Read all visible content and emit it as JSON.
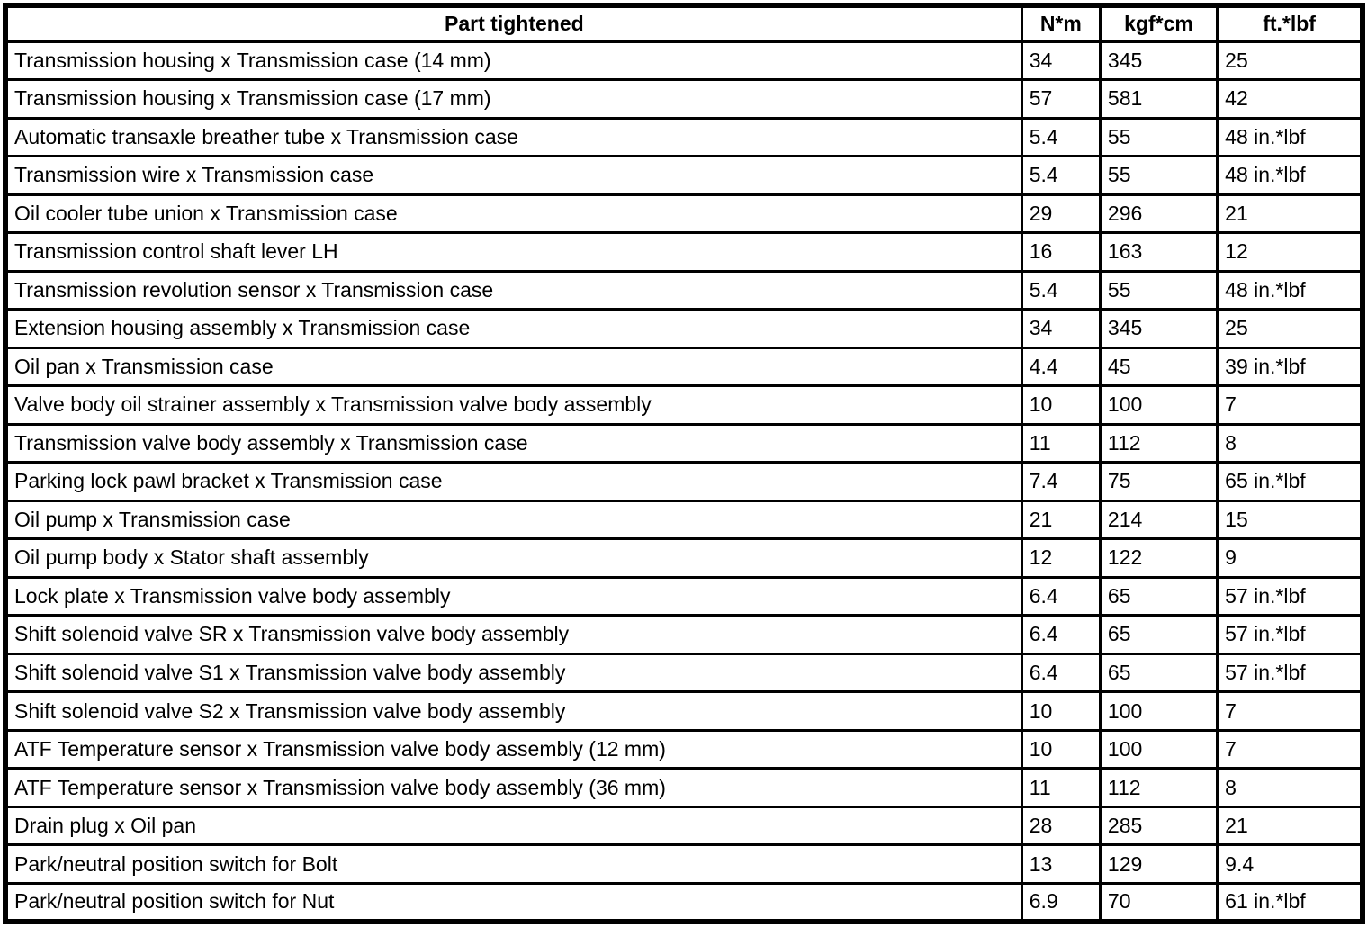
{
  "table": {
    "columns": {
      "part": "Part tightened",
      "nm": "N*m",
      "kgfcm": "kgf*cm",
      "ftlbf": "ft.*lbf"
    },
    "rows": [
      {
        "part": "Transmission housing x Transmission case (14 mm)",
        "nm": "34",
        "kgfcm": "345",
        "ftlbf": "25"
      },
      {
        "part": "Transmission housing x Transmission case (17 mm)",
        "nm": "57",
        "kgfcm": "581",
        "ftlbf": "42"
      },
      {
        "part": "Automatic transaxle breather tube x Transmission case",
        "nm": "5.4",
        "kgfcm": "55",
        "ftlbf": "48 in.*lbf"
      },
      {
        "part": "Transmission wire x Transmission case",
        "nm": "5.4",
        "kgfcm": "55",
        "ftlbf": "48 in.*lbf"
      },
      {
        "part": "Oil cooler tube union x Transmission case",
        "nm": "29",
        "kgfcm": "296",
        "ftlbf": "21"
      },
      {
        "part": "Transmission control shaft lever LH",
        "nm": "16",
        "kgfcm": "163",
        "ftlbf": "12"
      },
      {
        "part": "Transmission revolution sensor x Transmission case",
        "nm": "5.4",
        "kgfcm": "55",
        "ftlbf": "48 in.*lbf"
      },
      {
        "part": "Extension housing assembly x Transmission case",
        "nm": "34",
        "kgfcm": "345",
        "ftlbf": "25"
      },
      {
        "part": "Oil pan x Transmission case",
        "nm": "4.4",
        "kgfcm": "45",
        "ftlbf": "39 in.*lbf"
      },
      {
        "part": "Valve body oil strainer assembly x Transmission valve body assembly",
        "nm": "10",
        "kgfcm": "100",
        "ftlbf": "7"
      },
      {
        "part": "Transmission valve body assembly x Transmission case",
        "nm": "11",
        "kgfcm": "112",
        "ftlbf": "8"
      },
      {
        "part": "Parking lock pawl bracket x Transmission case",
        "nm": "7.4",
        "kgfcm": "75",
        "ftlbf": "65 in.*lbf"
      },
      {
        "part": "Oil pump x Transmission case",
        "nm": "21",
        "kgfcm": "214",
        "ftlbf": "15"
      },
      {
        "part": "Oil pump body x Stator shaft assembly",
        "nm": "12",
        "kgfcm": "122",
        "ftlbf": "9"
      },
      {
        "part": "Lock plate x Transmission valve body assembly",
        "nm": "6.4",
        "kgfcm": "65",
        "ftlbf": "57 in.*lbf"
      },
      {
        "part": "Shift solenoid valve SR x Transmission valve body assembly",
        "nm": "6.4",
        "kgfcm": "65",
        "ftlbf": "57 in.*lbf"
      },
      {
        "part": "Shift solenoid valve S1 x Transmission valve body assembly",
        "nm": "6.4",
        "kgfcm": "65",
        "ftlbf": "57 in.*lbf"
      },
      {
        "part": "Shift solenoid valve S2 x Transmission valve body assembly",
        "nm": "10",
        "kgfcm": "100",
        "ftlbf": "7"
      },
      {
        "part": "ATF Temperature sensor x Transmission valve body assembly (12 mm)",
        "nm": "10",
        "kgfcm": "100",
        "ftlbf": "7"
      },
      {
        "part": "ATF Temperature sensor x Transmission valve body assembly (36 mm)",
        "nm": "11",
        "kgfcm": "112",
        "ftlbf": "8"
      },
      {
        "part": "Drain plug x Oil pan",
        "nm": "28",
        "kgfcm": "285",
        "ftlbf": "21"
      },
      {
        "part": "Park/neutral position switch for Bolt",
        "nm": "13",
        "kgfcm": "129",
        "ftlbf": "9.4"
      },
      {
        "part": "Park/neutral position switch for Nut",
        "nm": "6.9",
        "kgfcm": "70",
        "ftlbf": "61 in.*lbf"
      }
    ]
  }
}
